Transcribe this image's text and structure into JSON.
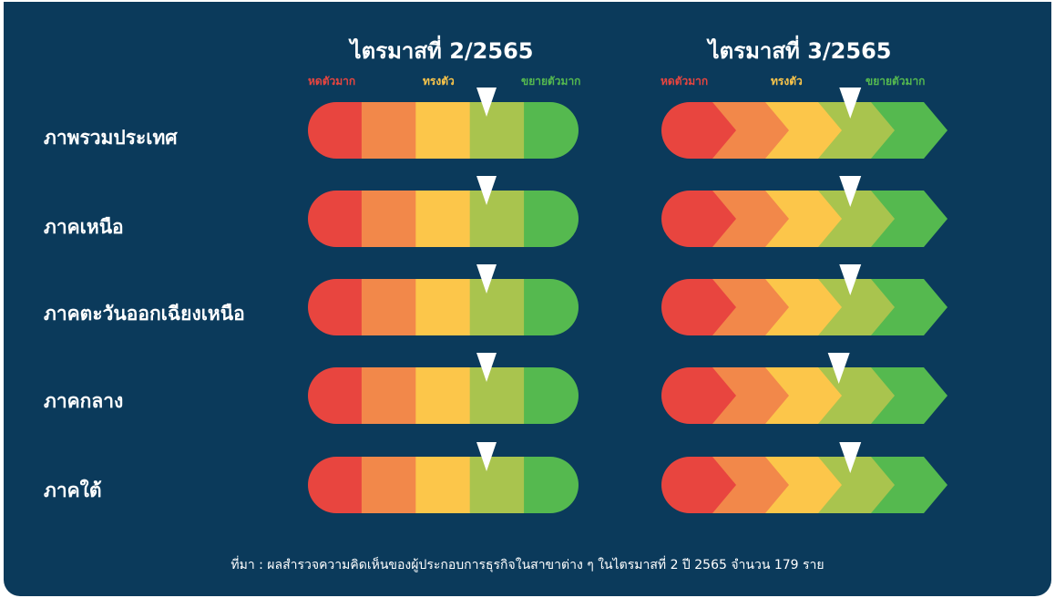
{
  "colors": {
    "background": "#0b3a5b",
    "contract_strong": "#e8453f",
    "contract": "#f2884a",
    "stable": "#fcc64a",
    "expand": "#a9c44e",
    "expand_strong": "#55b94f",
    "marker": "#ffffff"
  },
  "scale": {
    "low_label": "หดตัวมาก",
    "mid_label": "ทรงตัว",
    "high_label": "ขยายตัวมาก"
  },
  "chart_data": [
    {
      "type": "gauge",
      "title": "ไตรมาสที่ 2/2565",
      "segments": 5,
      "regions": [
        "ภาพรวมประเทศ",
        "ภาคเหนือ",
        "ภาคตะวันออกเฉียงเหนือ",
        "ภาคกลาง",
        "ภาคใต้"
      ],
      "values": [
        0.66,
        0.66,
        0.66,
        0.66,
        0.66
      ]
    },
    {
      "type": "gauge",
      "title": "ไตรมาสที่ 3/2565",
      "segments": 5,
      "regions": [
        "ภาพรวมประเทศ",
        "ภาคเหนือ",
        "ภาคตะวันออกเฉียงเหนือ",
        "ภาคกลาง",
        "ภาคใต้"
      ],
      "values": [
        0.66,
        0.66,
        0.66,
        0.62,
        0.66
      ]
    }
  ],
  "source": "ที่มา : ผลสำรวจความคิดเห็นของผู้ประกอบการธุรกิจในสาขาต่าง ๆ ในไตรมาสที่ 2 ปี 2565 จำนวน 179 ราย"
}
